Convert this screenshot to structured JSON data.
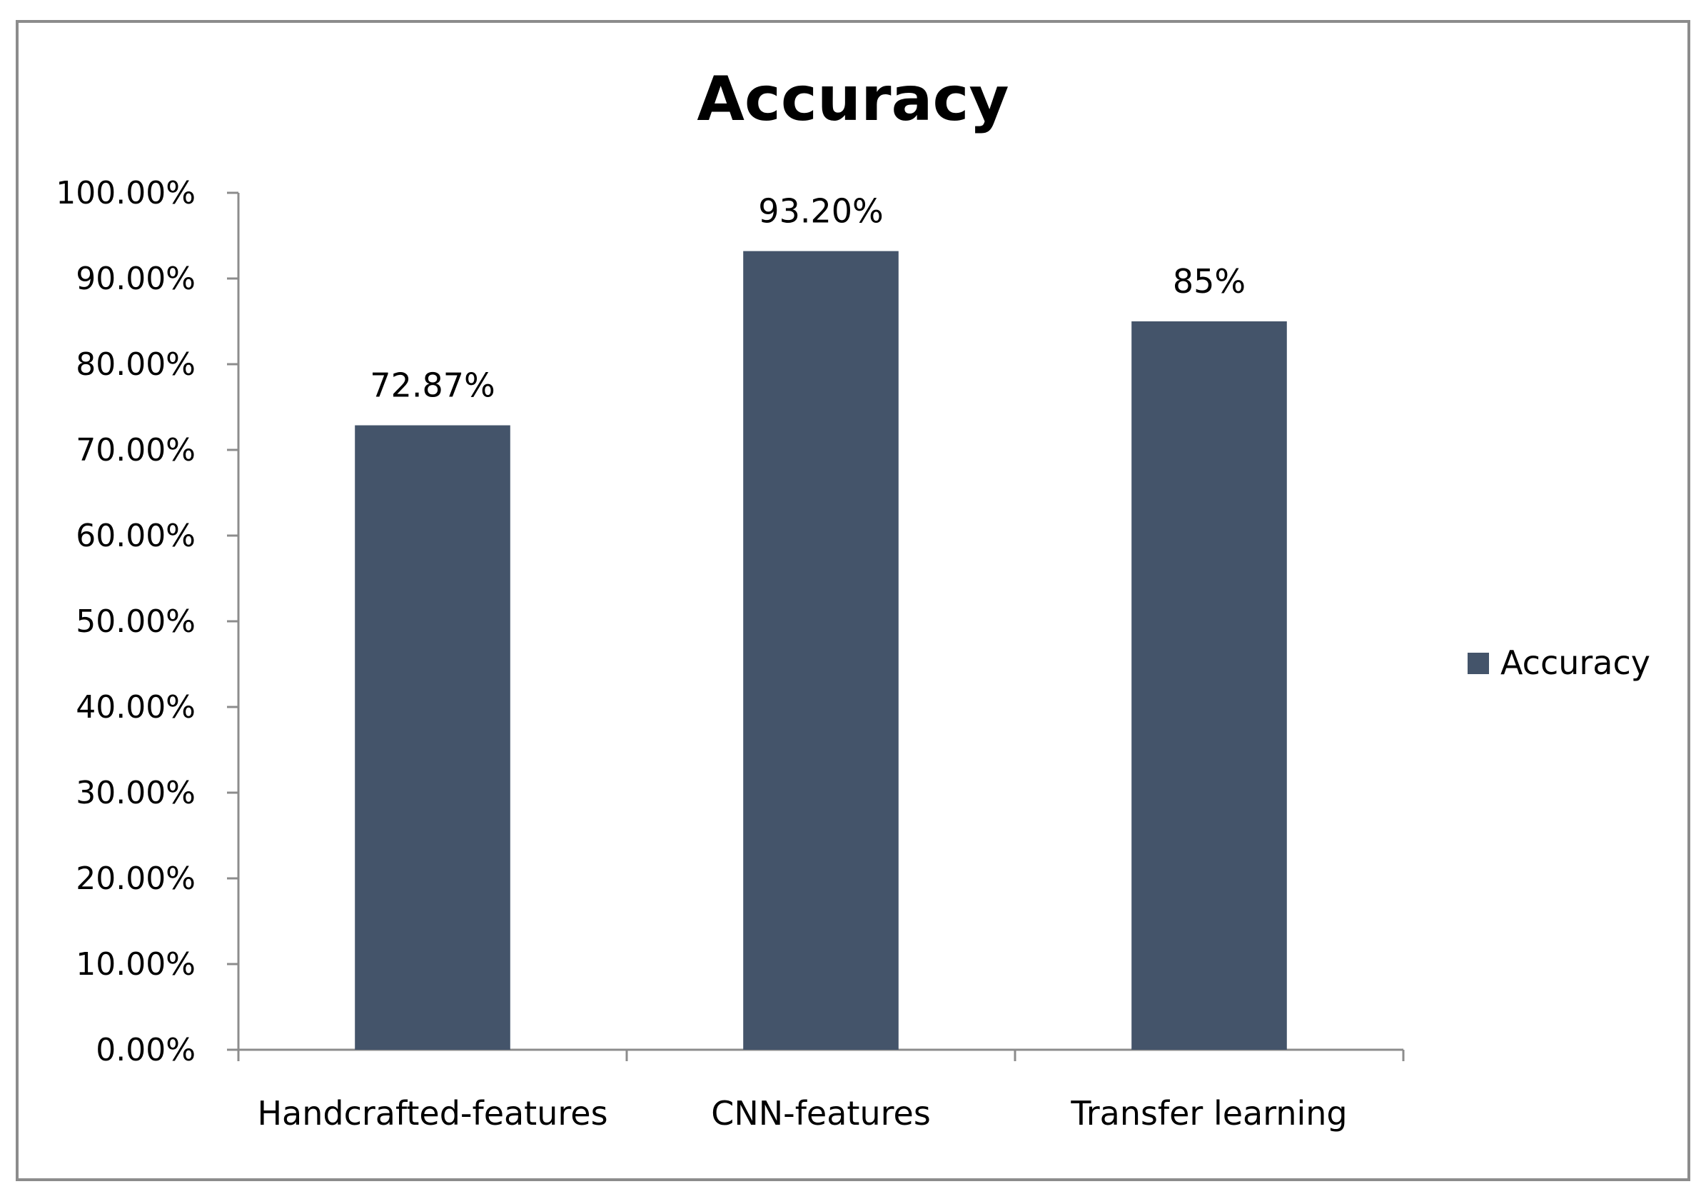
{
  "chart_data": {
    "type": "bar",
    "title": "Accuracy",
    "categories": [
      "Handcrafted-features",
      "CNN-features",
      "Transfer learning"
    ],
    "series": [
      {
        "name": "Accuracy",
        "values": [
          72.87,
          93.2,
          85
        ],
        "value_labels": [
          "72.87%",
          "93.20%",
          "85%"
        ],
        "color": "#44546a"
      }
    ],
    "ylim": [
      0,
      100
    ],
    "yticks": [
      0,
      10,
      20,
      30,
      40,
      50,
      60,
      70,
      80,
      90,
      100
    ],
    "ytick_labels": [
      "0.00%",
      "10.00%",
      "20.00%",
      "30.00%",
      "40.00%",
      "50.00%",
      "60.00%",
      "70.00%",
      "80.00%",
      "90.00%",
      "100.00%"
    ],
    "xlabel": "",
    "ylabel": "",
    "grid": false,
    "legend": {
      "position": "right",
      "entries": [
        "Accuracy"
      ]
    }
  }
}
